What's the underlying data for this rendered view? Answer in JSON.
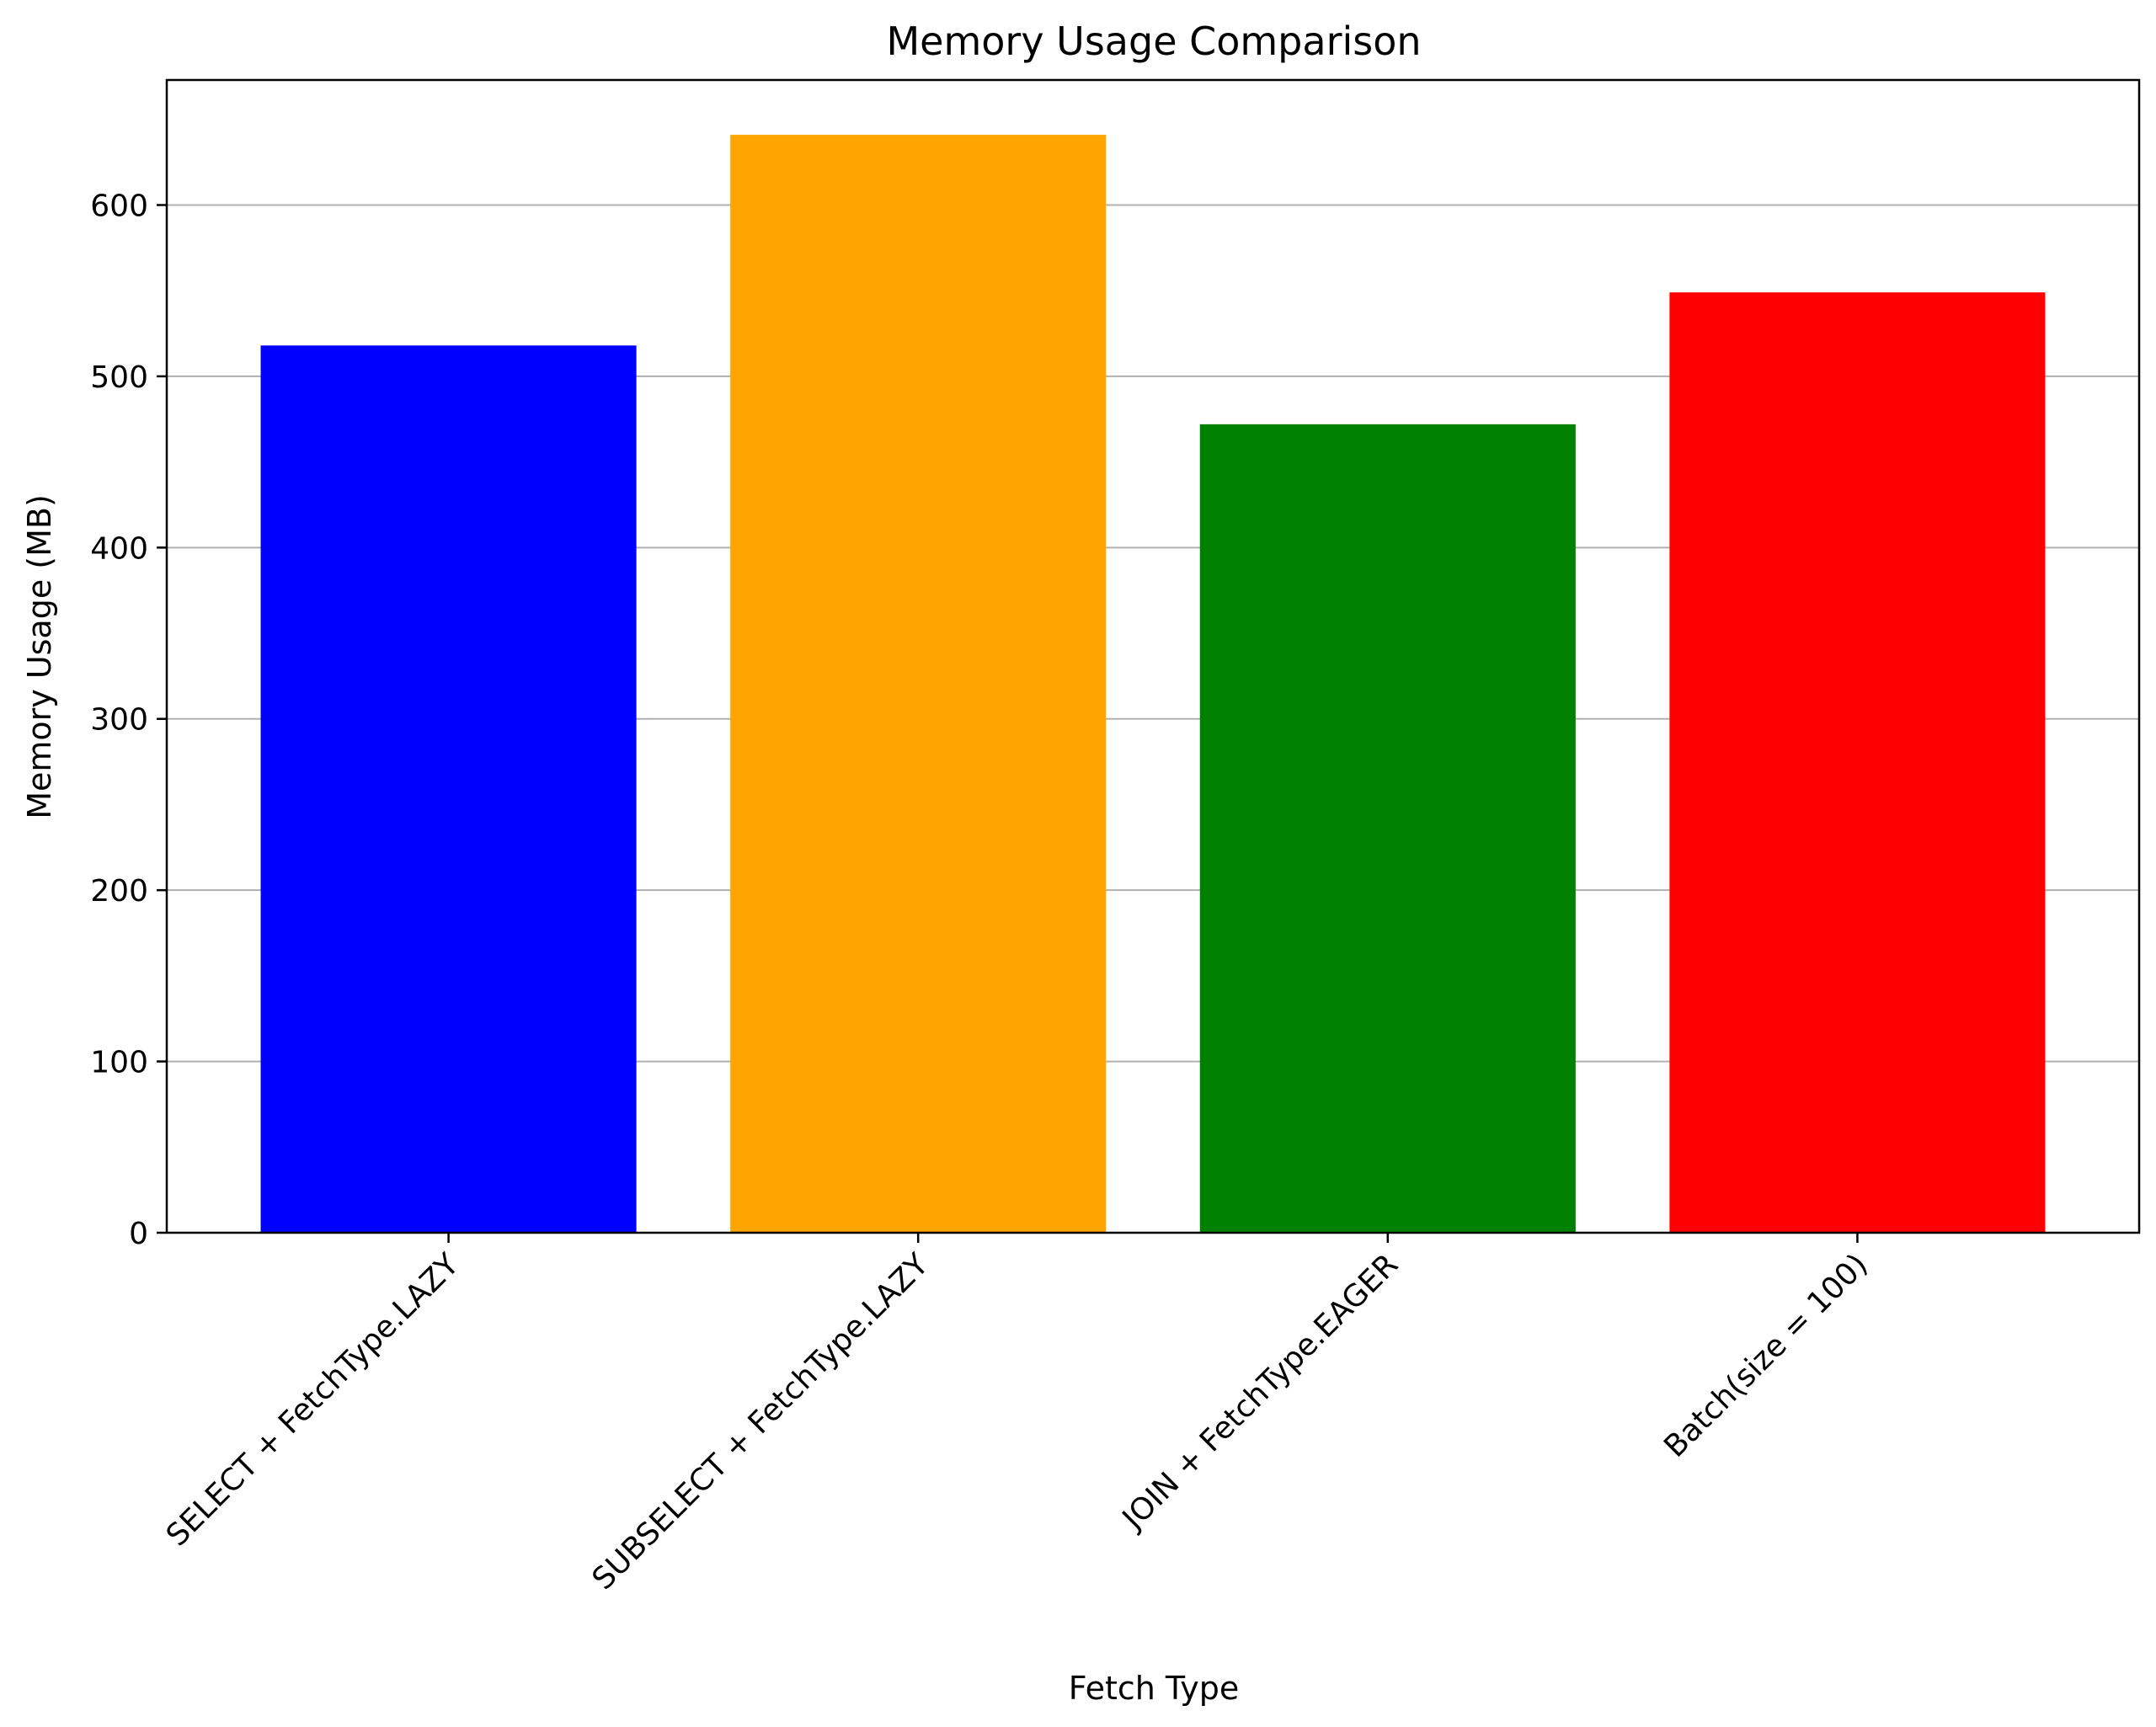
{
  "chart_data": {
    "type": "bar",
    "title": "Memory Usage Comparison",
    "xlabel": "Fetch Type",
    "ylabel": "Memory Usage (MB)",
    "categories": [
      "SELECT + FetchType.LAZY",
      "SUBSELECT + FetchType.LAZY",
      "JOIN + FetchType.EAGER",
      "Batch(size = 100)"
    ],
    "values": [
      518,
      641,
      472,
      549
    ],
    "colors": [
      "#0000ff",
      "#ffa500",
      "#008000",
      "#ff0000"
    ],
    "ylim": [
      0,
      673
    ],
    "yticks": [
      0,
      100,
      200,
      300,
      400,
      500,
      600
    ],
    "grid": "y"
  }
}
